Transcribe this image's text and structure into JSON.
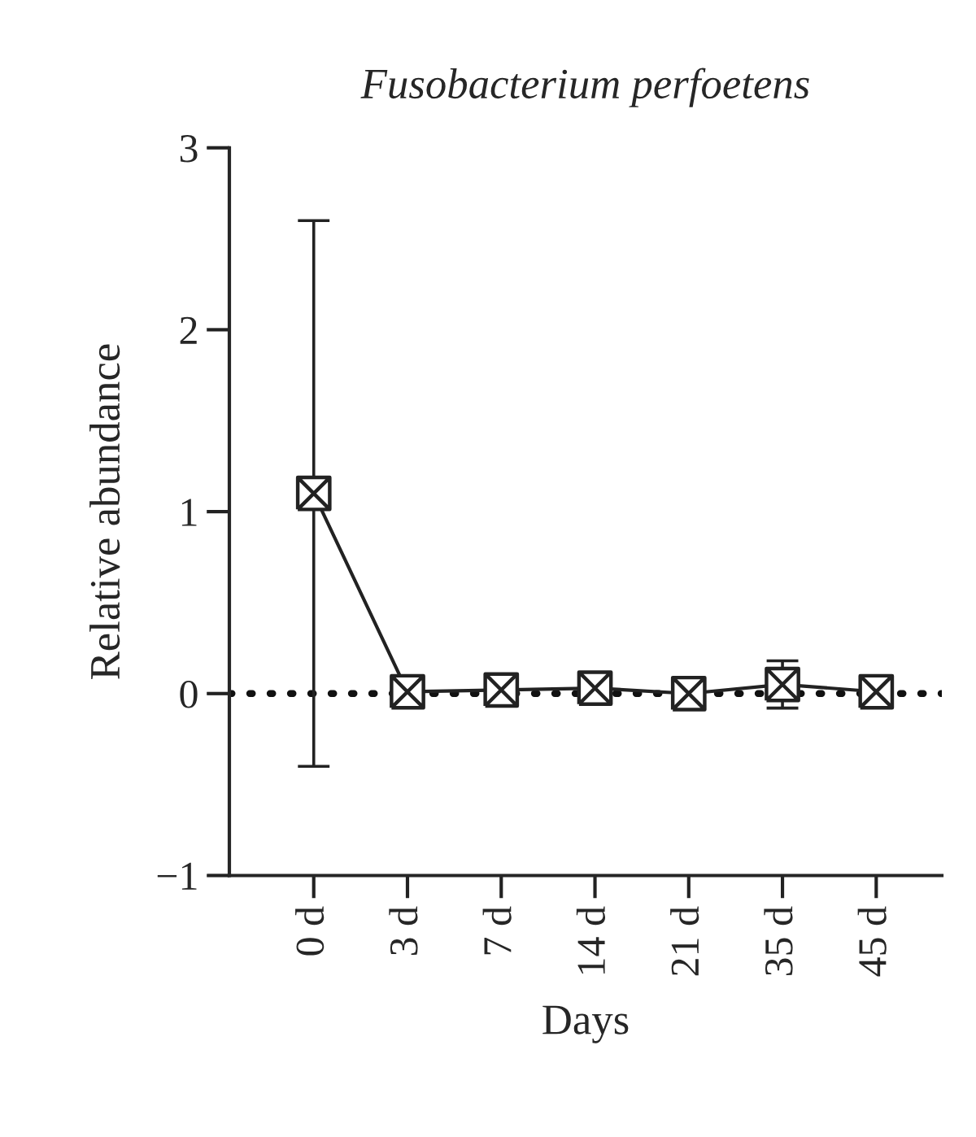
{
  "chart_data": {
    "type": "line",
    "title": "Fusobacterium perfoetens",
    "xlabel": "Days",
    "ylabel": "Relative abundance",
    "categories": [
      "0 d",
      "3 d",
      "7 d",
      "14 d",
      "21 d",
      "35 d",
      "45 d"
    ],
    "series": [
      {
        "color": "#222222",
        "values": [
          1.1,
          0.01,
          0.02,
          0.03,
          0.0,
          0.05,
          0.01
        ],
        "errors": [
          1.5,
          null,
          null,
          null,
          null,
          0.13,
          null
        ]
      }
    ],
    "ylim": [
      -1,
      3
    ],
    "yticks": [
      {
        "value": -1,
        "label": "−1"
      },
      0,
      1,
      2,
      3
    ],
    "ref_lines": [
      {
        "axis": "y",
        "value": 0,
        "color": "#111111",
        "line_style": "dotted"
      }
    ],
    "marker": "cross",
    "line_style": "solid",
    "grid": false,
    "legend": false
  }
}
